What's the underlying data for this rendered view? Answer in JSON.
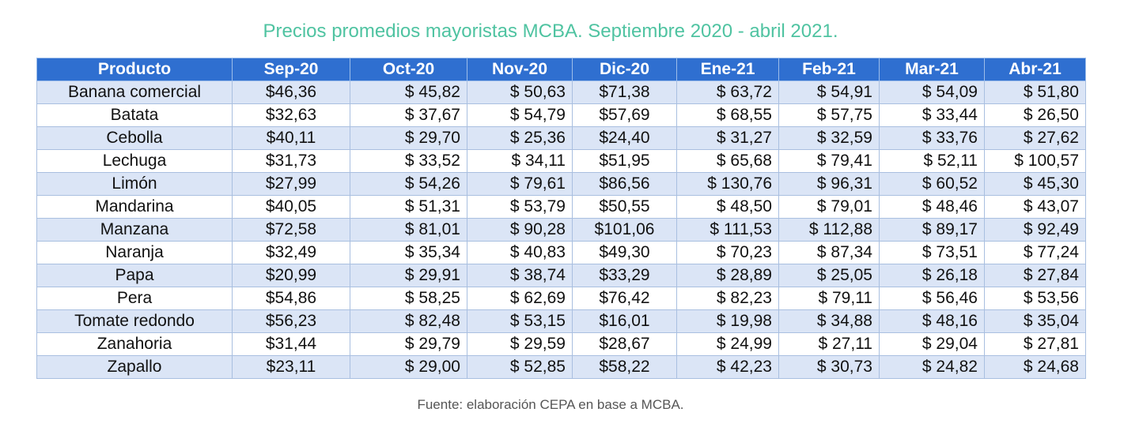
{
  "chart_data": {
    "type": "table",
    "title": "Precios promedios mayoristas MCBA. Septiembre 2020 - abril 2021.",
    "columns": [
      "Producto",
      "Sep-20",
      "Oct-20",
      "Nov-20",
      "Dic-20",
      "Ene-21",
      "Feb-21",
      "Mar-21",
      "Abr-21"
    ],
    "rows": [
      [
        "Banana comercial",
        "$46,36",
        "$ 45,82",
        "$ 50,63",
        "$71,38",
        "$ 63,72",
        "$ 54,91",
        "$ 54,09",
        "$ 51,80"
      ],
      [
        "Batata",
        "$32,63",
        "$ 37,67",
        "$ 54,79",
        "$57,69",
        "$ 68,55",
        "$ 57,75",
        "$ 33,44",
        "$ 26,50"
      ],
      [
        "Cebolla",
        "$40,11",
        "$ 29,70",
        "$ 25,36",
        "$24,40",
        "$ 31,27",
        "$ 32,59",
        "$ 33,76",
        "$ 27,62"
      ],
      [
        "Lechuga",
        "$31,73",
        "$ 33,52",
        "$ 34,11",
        "$51,95",
        "$ 65,68",
        "$ 79,41",
        "$ 52,11",
        "$ 100,57"
      ],
      [
        "Limón",
        "$27,99",
        "$ 54,26",
        "$ 79,61",
        "$86,56",
        "$ 130,76",
        "$ 96,31",
        "$ 60,52",
        "$ 45,30"
      ],
      [
        "Mandarina",
        "$40,05",
        "$ 51,31",
        "$ 53,79",
        "$50,55",
        "$ 48,50",
        "$ 79,01",
        "$ 48,46",
        "$ 43,07"
      ],
      [
        "Manzana",
        "$72,58",
        "$ 81,01",
        "$ 90,28",
        "$101,06",
        "$ 111,53",
        "$ 112,88",
        "$ 89,17",
        "$ 92,49"
      ],
      [
        "Naranja",
        "$32,49",
        "$ 35,34",
        "$ 40,83",
        "$49,30",
        "$ 70,23",
        "$ 87,34",
        "$ 73,51",
        "$ 77,24"
      ],
      [
        "Papa",
        "$20,99",
        "$ 29,91",
        "$ 38,74",
        "$33,29",
        "$ 28,89",
        "$ 25,05",
        "$ 26,18",
        "$ 27,84"
      ],
      [
        "Pera",
        "$54,86",
        "$ 58,25",
        "$ 62,69",
        "$76,42",
        "$ 82,23",
        "$ 79,11",
        "$ 56,46",
        "$ 53,56"
      ],
      [
        "Tomate redondo",
        "$56,23",
        "$ 82,48",
        "$ 53,15",
        "$16,01",
        "$ 19,98",
        "$ 34,88",
        "$ 48,16",
        "$ 35,04"
      ],
      [
        "Zanahoria",
        "$31,44",
        "$ 29,79",
        "$ 29,59",
        "$28,67",
        "$ 24,99",
        "$ 27,11",
        "$ 29,04",
        "$ 27,81"
      ],
      [
        "Zapallo",
        "$23,11",
        "$ 29,00",
        "$ 52,85",
        "$58,22",
        "$ 42,23",
        "$ 30,73",
        "$ 24,82",
        "$ 24,68"
      ]
    ],
    "source": "Fuente: elaboración CEPA en base a MCBA."
  },
  "colors": {
    "title": "#4fc3a1",
    "header_bg": "#2f6fd0",
    "header_text": "#ffffff",
    "stripe": "#dbe5f6",
    "border": "#a9bfe0",
    "source_text": "#555555"
  }
}
